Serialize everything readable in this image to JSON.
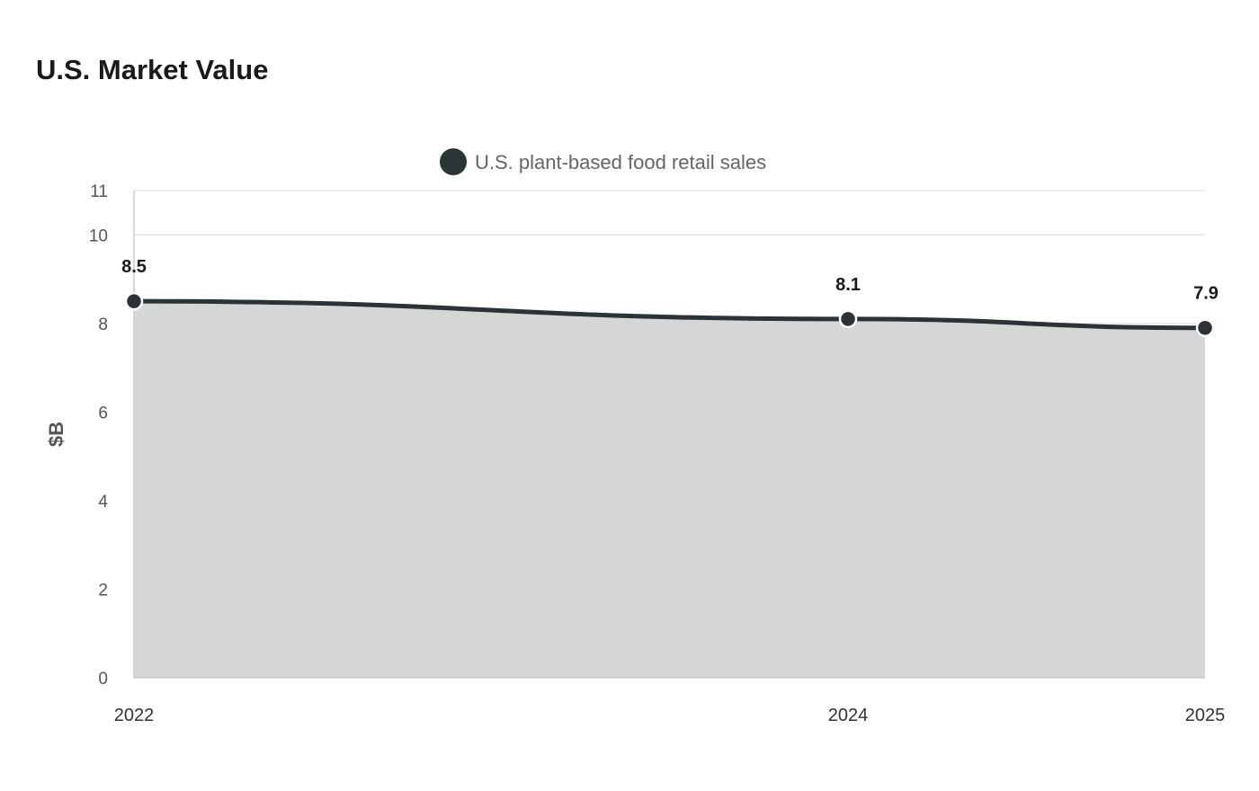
{
  "page": {
    "title": "U.S. Market Value"
  },
  "chart_data": {
    "type": "area",
    "x": [
      "2022",
      "2024",
      "2025"
    ],
    "series": [
      {
        "name": "U.S. plant-based food retail sales",
        "values": [
          8.5,
          8.1,
          7.9
        ]
      }
    ],
    "ylabel": "$B",
    "xlabel": "",
    "ylim": [
      0,
      11
    ],
    "yticks": [
      0,
      2,
      4,
      6,
      8,
      10,
      11
    ],
    "grid": true,
    "legend_position": "top-center",
    "colors": {
      "line": "#2b3336",
      "fill": "#d5d7d6",
      "grid": "#e3e3e3",
      "axis": "#cccccc"
    }
  }
}
